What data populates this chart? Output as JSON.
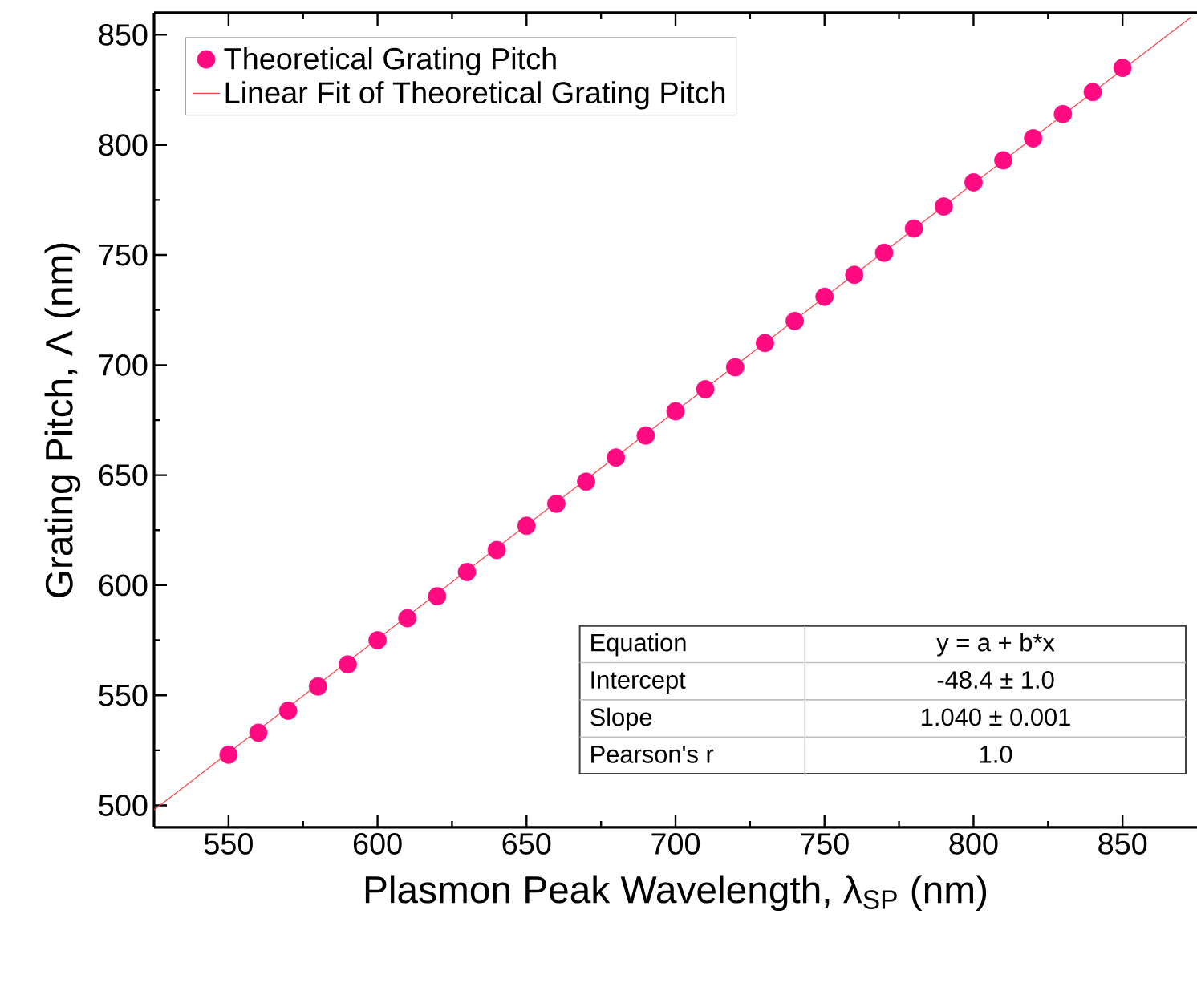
{
  "chart_data": {
    "type": "scatter",
    "xlabel": "Plasmon Peak Wavelength, λ$_{SP}$ (nm)",
    "ylabel": "Grating Pitch, Λ (nm)",
    "xlim": [
      525,
      875
    ],
    "ylim": [
      490,
      860
    ],
    "xticks": [
      550,
      600,
      650,
      700,
      750,
      800,
      850
    ],
    "yticks": [
      500,
      550,
      600,
      650,
      700,
      750,
      800,
      850
    ],
    "legend": "top left",
    "grid": false,
    "series": [
      {
        "name": "Theoretical Grating Pitch",
        "marker": "circle",
        "color": "#ff0a80",
        "x": [
          550,
          560,
          570,
          580,
          590,
          600,
          610,
          620,
          630,
          640,
          650,
          660,
          670,
          680,
          690,
          700,
          710,
          720,
          730,
          740,
          750,
          760,
          770,
          780,
          790,
          800,
          810,
          820,
          830,
          840,
          850
        ],
        "values": [
          523,
          533,
          543,
          554,
          564,
          575,
          585,
          595,
          606,
          616,
          627,
          637,
          647,
          658,
          668,
          679,
          689,
          699,
          710,
          720,
          731,
          741,
          751,
          762,
          772,
          783,
          793,
          803,
          814,
          824,
          835
        ]
      },
      {
        "name": "Linear Fit of Theoretical Grating Pitch",
        "type": "line",
        "marker": "none",
        "line_style": "solid",
        "color": "#ff4040",
        "x": [
          525,
          873
        ],
        "values": [
          498,
          858
        ]
      }
    ],
    "annotations": [
      "Equation",
      "y = a + b*x",
      "Intercept",
      "-48.4 ± 1.0",
      "Slope",
      "1.040 ± 0.001",
      "Pearson's r",
      "1.0"
    ]
  }
}
